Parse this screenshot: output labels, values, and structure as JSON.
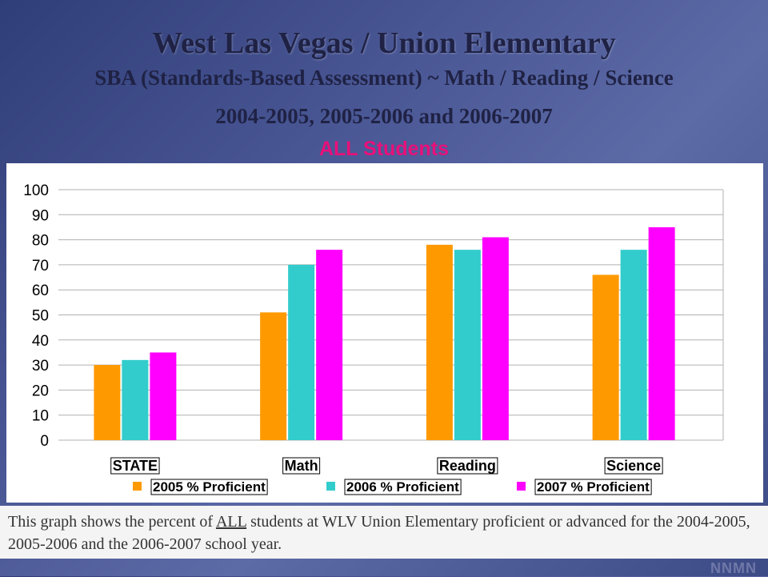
{
  "title_line1": "West Las Vegas / Union Elementary",
  "title_line2": "SBA (Standards-Based Assessment) ~ Math / Reading / Science",
  "title_line3": "2004-2005, 2005-2006 and 2006-2007",
  "subtitle": "ALL  Students",
  "caption": {
    "part1": "This graph shows the percent of ",
    "underlined": "ALL",
    "part2": " students at WLV Union Elementary proficient or advanced for the 2004-2005, 2005-2006 and the 2006-2007 school year."
  },
  "logo": "NNMN",
  "colors": {
    "2005": "#ff9900",
    "2006": "#33cccc",
    "2007": "#ff00ff"
  },
  "chart_data": {
    "type": "bar",
    "categories": [
      "STATE",
      "Math",
      "Reading",
      "Science"
    ],
    "series": [
      {
        "name": "2005 % Proficient",
        "values": [
          30,
          51,
          78,
          66
        ]
      },
      {
        "name": "2006  % Proficient",
        "values": [
          32,
          70,
          76,
          76
        ]
      },
      {
        "name": "2007 % Proficient",
        "values": [
          35,
          76,
          81,
          85
        ]
      }
    ],
    "yticks": [
      0,
      10,
      20,
      30,
      40,
      50,
      60,
      70,
      80,
      90,
      100
    ],
    "ylim": [
      0,
      100
    ],
    "grid": true,
    "legend": "bottom"
  }
}
